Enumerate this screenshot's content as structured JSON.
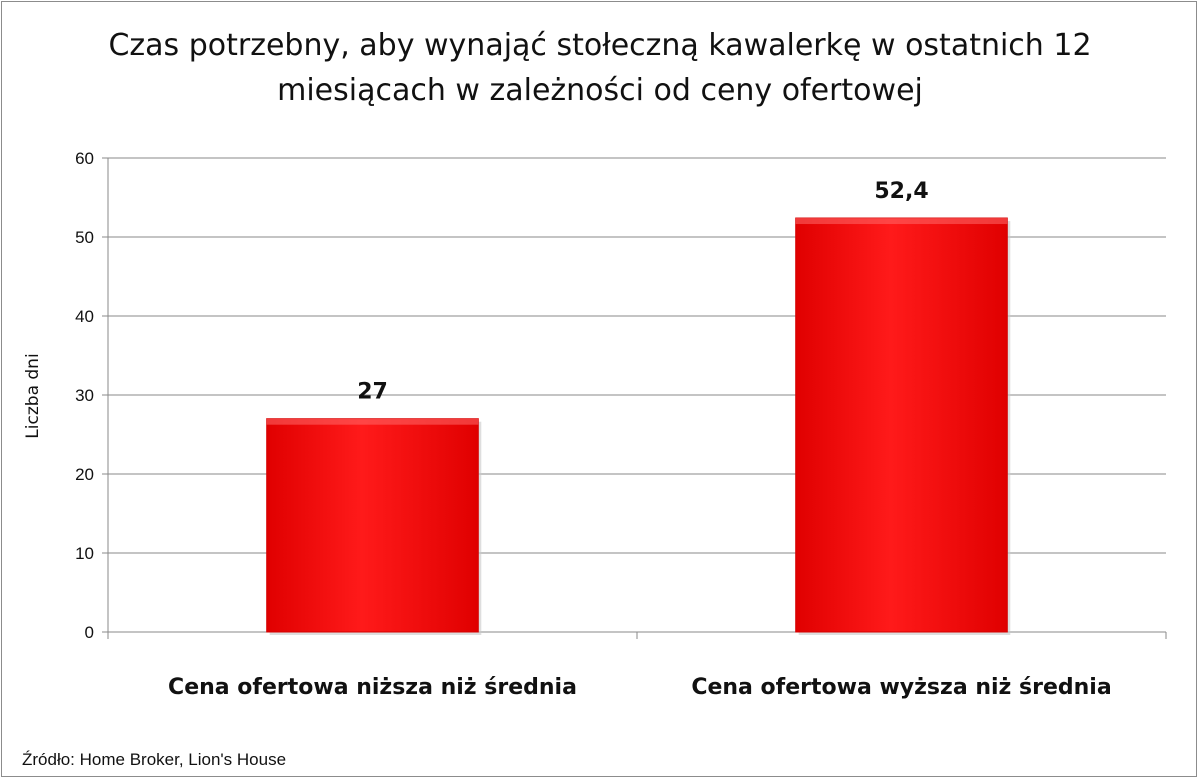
{
  "chart_data": {
    "type": "bar",
    "title_lines": [
      "Czas potrzebny, aby wynająć stołeczną kawalerkę w ostatnich 12",
      "miesiącach w zależności od ceny ofertowej"
    ],
    "ylabel": "Liczba dni",
    "xlabel": "",
    "categories": [
      "Cena ofertowa niższa niż średnia",
      "Cena ofertowa wyższa niż średnia"
    ],
    "values": [
      27,
      52.4
    ],
    "value_labels": [
      "27",
      "52,4"
    ],
    "ylim": [
      0,
      60
    ],
    "yticks": [
      0,
      10,
      20,
      30,
      40,
      50,
      60
    ],
    "grid": true,
    "legend": "none",
    "bar_color": "#ff0000"
  },
  "source_text": "Źródło: Home Broker, Lion's House"
}
